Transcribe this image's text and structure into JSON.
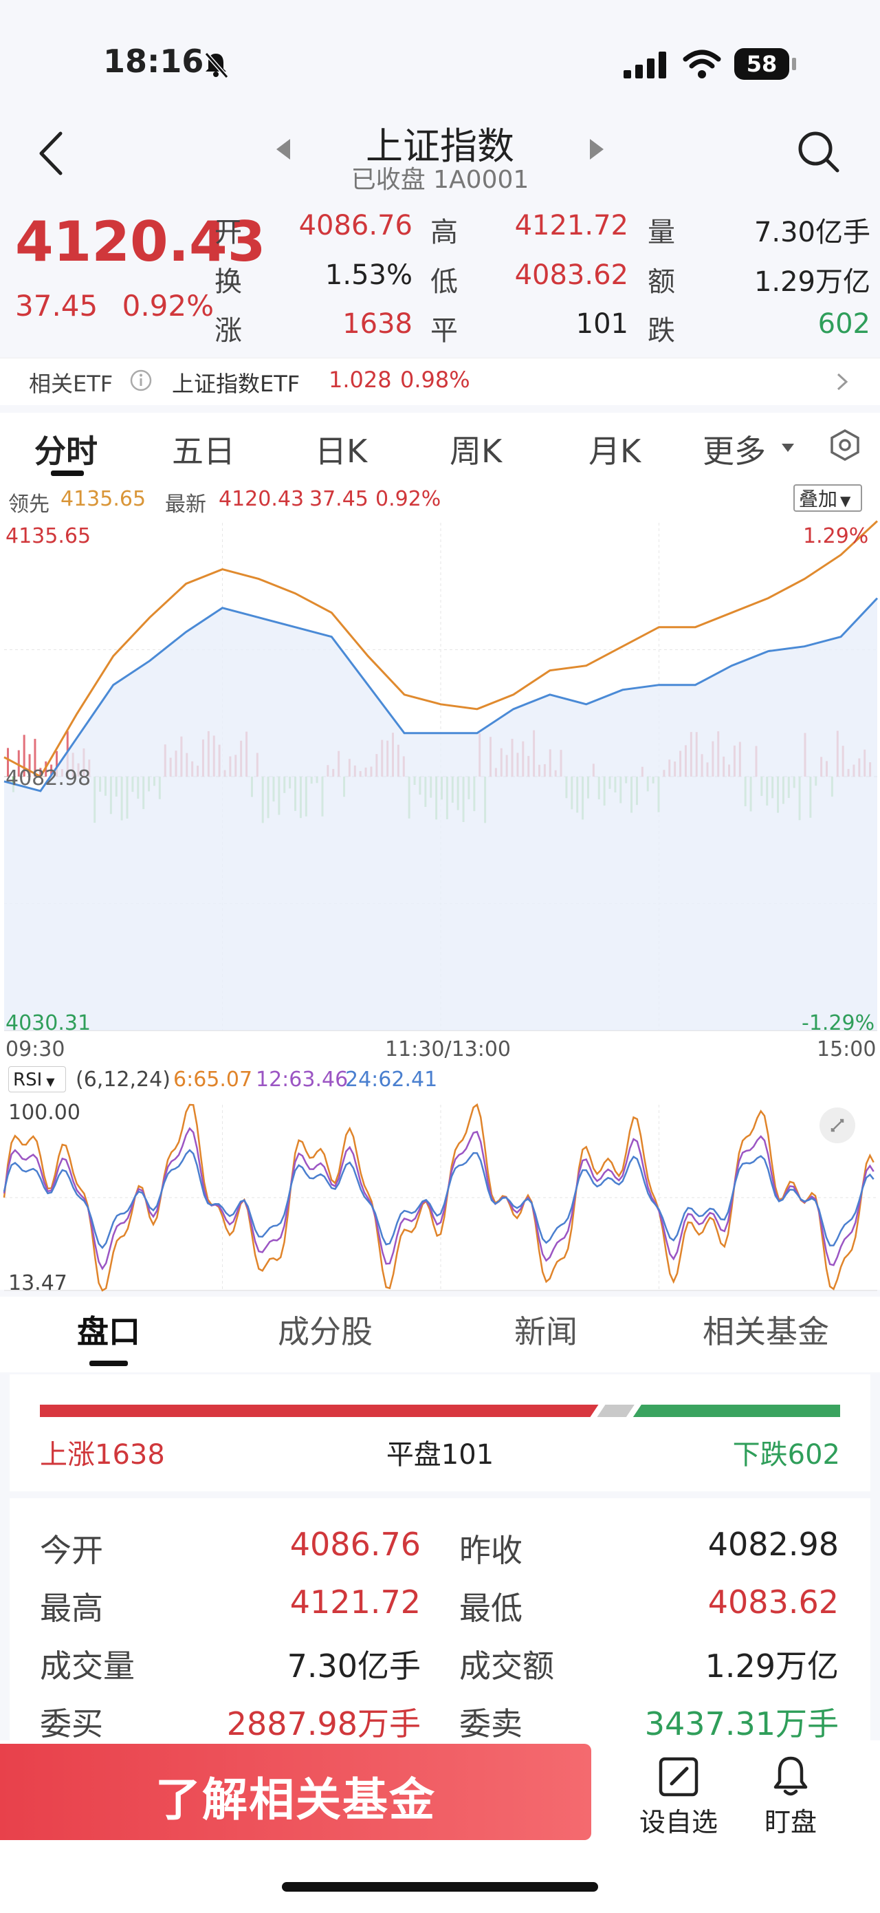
{
  "status": {
    "time": "18:16",
    "battery": "58"
  },
  "nav": {
    "title": "上证指数",
    "subtitle": "已收盘 1A0001"
  },
  "quote": {
    "price": "4120.43",
    "change": "37.45",
    "change_pct": "0.92%",
    "rows": [
      [
        {
          "label": "开",
          "value": "4086.76",
          "color": "red"
        },
        {
          "label": "高",
          "value": "4121.72",
          "color": "red"
        },
        {
          "label": "量",
          "value": "7.30亿手",
          "color": "dark"
        }
      ],
      [
        {
          "label": "换",
          "value": "1.53%",
          "color": "dark"
        },
        {
          "label": "低",
          "value": "4083.62",
          "color": "red"
        },
        {
          "label": "额",
          "value": "1.29万亿",
          "color": "dark"
        }
      ],
      [
        {
          "label": "涨",
          "value": "1638",
          "color": "red"
        },
        {
          "label": "平",
          "value": "101",
          "color": "dark"
        },
        {
          "label": "跌",
          "value": "602",
          "color": "green"
        }
      ]
    ]
  },
  "etf": {
    "label": "相关ETF",
    "name": "上证指数ETF",
    "price": "1.028",
    "pct": "0.98%"
  },
  "chart_tabs": [
    "分时",
    "五日",
    "日K",
    "周K",
    "月K",
    "更多"
  ],
  "legend": {
    "lead_label": "领先",
    "lead_value": "4135.65",
    "latest_label": "最新",
    "latest_value": "4120.43",
    "latest_change": "37.45",
    "latest_pct": "0.92%",
    "overlay_btn": "叠加"
  },
  "chart_data": {
    "type": "line",
    "y_top_label": "4135.65",
    "y_mid_label": "4082.98",
    "y_bottom_label": "4030.31",
    "pct_top_label": "1.29%",
    "pct_bottom_label": "-1.29%",
    "ylim": [
      4030.31,
      4135.65
    ],
    "x_ticks": [
      "09:30",
      "11:30/13:00",
      "15:00"
    ],
    "colors": {
      "price": "#4a8ad6",
      "lead": "#e08a2e",
      "up_bar": "#e2707a",
      "down_bar": "#7fcc7a"
    },
    "series": [
      {
        "values": [
          4082,
          4080,
          4091,
          4102,
          4107,
          4113,
          4118,
          4116,
          4114,
          4112,
          4102,
          4092,
          4092,
          4092,
          4097,
          4100,
          4098,
          4101,
          4102,
          4102,
          4106,
          4109,
          4110,
          4112,
          4120
        ]
      },
      {
        "values": [
          4087,
          4083,
          4096,
          4108,
          4116,
          4123,
          4126,
          4124,
          4121,
          4117,
          4108,
          4100,
          4098,
          4097,
          4100,
          4105,
          4106,
          4110,
          4114,
          4114,
          4117,
          4120,
          4124,
          4129,
          4136
        ]
      }
    ]
  },
  "rsi": {
    "label": "RSI",
    "params": "(6,12,24)",
    "r6": "6:65.07",
    "r12": "12:63.46",
    "r24": "24:62.41",
    "top": "100.00",
    "bottom": "13.47",
    "colors": {
      "r6": "#e0842a",
      "r12": "#9b55c3",
      "r24": "#4a7fcf"
    }
  },
  "lower_tabs": [
    "盘口",
    "成分股",
    "新闻",
    "相关基金"
  ],
  "breadth": {
    "up": "上涨1638",
    "flat": "平盘101",
    "down": "下跌602",
    "up_frac": 0.698,
    "flat_frac": 0.045,
    "down_frac": 0.257
  },
  "stats": [
    [
      {
        "label": "今开",
        "value": "4086.76",
        "color": "red"
      },
      {
        "label": "昨收",
        "value": "4082.98",
        "color": "dark"
      }
    ],
    [
      {
        "label": "最高",
        "value": "4121.72",
        "color": "red"
      },
      {
        "label": "最低",
        "value": "4083.62",
        "color": "red"
      }
    ],
    [
      {
        "label": "成交量",
        "value": "7.30亿手",
        "color": "dark"
      },
      {
        "label": "成交额",
        "value": "1.29万亿",
        "color": "dark"
      }
    ],
    [
      {
        "label": "委买",
        "value": "2887.98万手",
        "color": "red"
      },
      {
        "label": "委卖",
        "value": "3437.31万手",
        "color": "green"
      }
    ]
  ],
  "bottom": {
    "cta": "了解相关基金",
    "watch": "设自选",
    "monitor": "盯盘"
  }
}
